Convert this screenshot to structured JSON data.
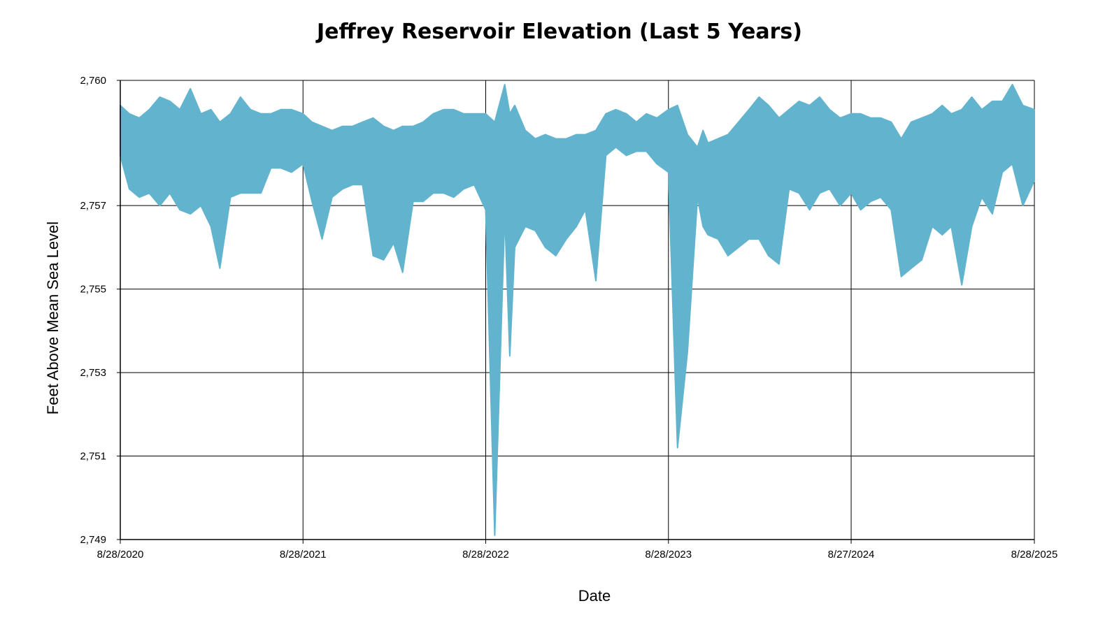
{
  "chart_data": {
    "type": "area",
    "title": "Jeffrey Reservoir Elevation (Last 5 Years)",
    "xlabel": "Date",
    "ylabel": "Feet Above Mean Sea Level",
    "xlim": [
      "2020-08-28",
      "2025-08-28"
    ],
    "ylim": [
      2749,
      2760
    ],
    "yticks": [
      2749,
      2751,
      2753,
      2755,
      2757,
      2760
    ],
    "ytick_labels": [
      "2,749",
      "2,751",
      "2,753",
      "2,755",
      "2,757",
      "2,760"
    ],
    "xticks": [
      "2020-08-28",
      "2021-08-28",
      "2022-08-28",
      "2023-08-28",
      "2024-08-27",
      "2025-08-28"
    ],
    "xtick_labels": [
      "8/28/2020",
      "8/28/2021",
      "8/28/2022",
      "8/28/2023",
      "8/27/2024",
      "8/28/2025"
    ],
    "grid": true,
    "series": [
      {
        "color": "#62b4ce",
        "x": [
          "2020-08-28",
          "2020-09-15",
          "2020-10-05",
          "2020-10-25",
          "2020-11-15",
          "2020-12-05",
          "2020-12-25",
          "2021-01-15",
          "2021-02-05",
          "2021-02-25",
          "2021-03-15",
          "2021-04-05",
          "2021-04-25",
          "2021-05-15",
          "2021-06-05",
          "2021-06-25",
          "2021-07-15",
          "2021-08-05",
          "2021-08-28",
          "2021-09-15",
          "2021-10-05",
          "2021-10-25",
          "2021-11-15",
          "2021-12-05",
          "2021-12-25",
          "2022-01-15",
          "2022-02-05",
          "2022-02-25",
          "2022-03-15",
          "2022-04-05",
          "2022-04-25",
          "2022-05-15",
          "2022-06-05",
          "2022-06-25",
          "2022-07-15",
          "2022-08-05",
          "2022-08-28",
          "2022-09-15",
          "2022-10-05",
          "2022-10-15",
          "2022-10-25",
          "2022-11-15",
          "2022-12-05",
          "2022-12-25",
          "2023-01-15",
          "2023-02-05",
          "2023-02-25",
          "2023-03-15",
          "2023-04-05",
          "2023-04-25",
          "2023-05-15",
          "2023-06-05",
          "2023-06-25",
          "2023-07-15",
          "2023-08-05",
          "2023-08-28",
          "2023-09-15",
          "2023-10-05",
          "2023-10-25",
          "2023-11-05",
          "2023-11-15",
          "2023-12-05",
          "2023-12-25",
          "2024-01-15",
          "2024-02-05",
          "2024-02-25",
          "2024-03-15",
          "2024-04-05",
          "2024-04-25",
          "2024-05-15",
          "2024-06-05",
          "2024-06-25",
          "2024-07-15",
          "2024-08-05",
          "2024-08-27",
          "2024-09-15",
          "2024-10-05",
          "2024-10-25",
          "2024-11-15",
          "2024-12-05",
          "2024-12-25",
          "2025-01-15",
          "2025-02-05",
          "2025-02-25",
          "2025-03-15",
          "2025-04-05",
          "2025-04-25",
          "2025-05-15",
          "2025-06-05",
          "2025-06-25",
          "2025-07-15",
          "2025-08-05",
          "2025-08-28"
        ],
        "high": [
          2759.4,
          2759.2,
          2759.1,
          2759.3,
          2759.6,
          2759.5,
          2759.3,
          2759.8,
          2759.2,
          2759.3,
          2759.0,
          2759.2,
          2759.6,
          2759.3,
          2759.2,
          2759.2,
          2759.3,
          2759.3,
          2759.2,
          2759.0,
          2758.9,
          2758.8,
          2758.9,
          2758.9,
          2759.0,
          2759.1,
          2758.9,
          2758.8,
          2758.9,
          2758.9,
          2759.0,
          2759.2,
          2759.3,
          2759.3,
          2759.2,
          2759.2,
          2759.2,
          2759.0,
          2759.9,
          2759.2,
          2759.4,
          2758.8,
          2758.6,
          2758.7,
          2758.6,
          2758.6,
          2758.7,
          2758.7,
          2758.8,
          2759.2,
          2759.3,
          2759.2,
          2759.0,
          2759.2,
          2759.1,
          2759.3,
          2759.4,
          2758.7,
          2758.4,
          2758.8,
          2758.5,
          2758.6,
          2758.7,
          2759.0,
          2759.3,
          2759.6,
          2759.4,
          2759.1,
          2759.3,
          2759.5,
          2759.4,
          2759.6,
          2759.3,
          2759.1,
          2759.2,
          2759.2,
          2759.1,
          2759.1,
          2759.0,
          2758.6,
          2759.0,
          2759.1,
          2759.2,
          2759.4,
          2759.2,
          2759.3,
          2759.6,
          2759.3,
          2759.5,
          2759.5,
          2759.9,
          2759.4,
          2759.3
        ],
        "low": [
          2758.2,
          2757.4,
          2757.2,
          2757.3,
          2757.0,
          2757.3,
          2756.9,
          2756.8,
          2757.0,
          2756.5,
          2755.5,
          2757.2,
          2757.3,
          2757.3,
          2757.3,
          2757.9,
          2757.9,
          2757.8,
          2758.0,
          2757.1,
          2756.2,
          2757.2,
          2757.4,
          2757.5,
          2757.5,
          2755.8,
          2755.7,
          2756.1,
          2755.4,
          2757.1,
          2757.1,
          2757.3,
          2757.3,
          2757.2,
          2757.4,
          2757.5,
          2756.9,
          2749.1,
          2756.8,
          2753.4,
          2756.0,
          2756.5,
          2756.4,
          2756.0,
          2755.8,
          2756.2,
          2756.5,
          2756.9,
          2755.2,
          2758.2,
          2758.4,
          2758.2,
          2758.3,
          2758.3,
          2758.0,
          2757.8,
          2751.2,
          2753.5,
          2757.2,
          2756.5,
          2756.3,
          2756.2,
          2755.8,
          2756.0,
          2756.2,
          2756.2,
          2755.8,
          2755.6,
          2757.4,
          2757.3,
          2756.9,
          2757.3,
          2757.4,
          2757.0,
          2757.3,
          2756.9,
          2757.1,
          2757.2,
          2756.9,
          2755.3,
          2755.5,
          2755.7,
          2756.5,
          2756.3,
          2756.5,
          2755.1,
          2756.5,
          2757.2,
          2756.8,
          2757.8,
          2758.0,
          2757.0,
          2757.6
        ]
      }
    ]
  }
}
